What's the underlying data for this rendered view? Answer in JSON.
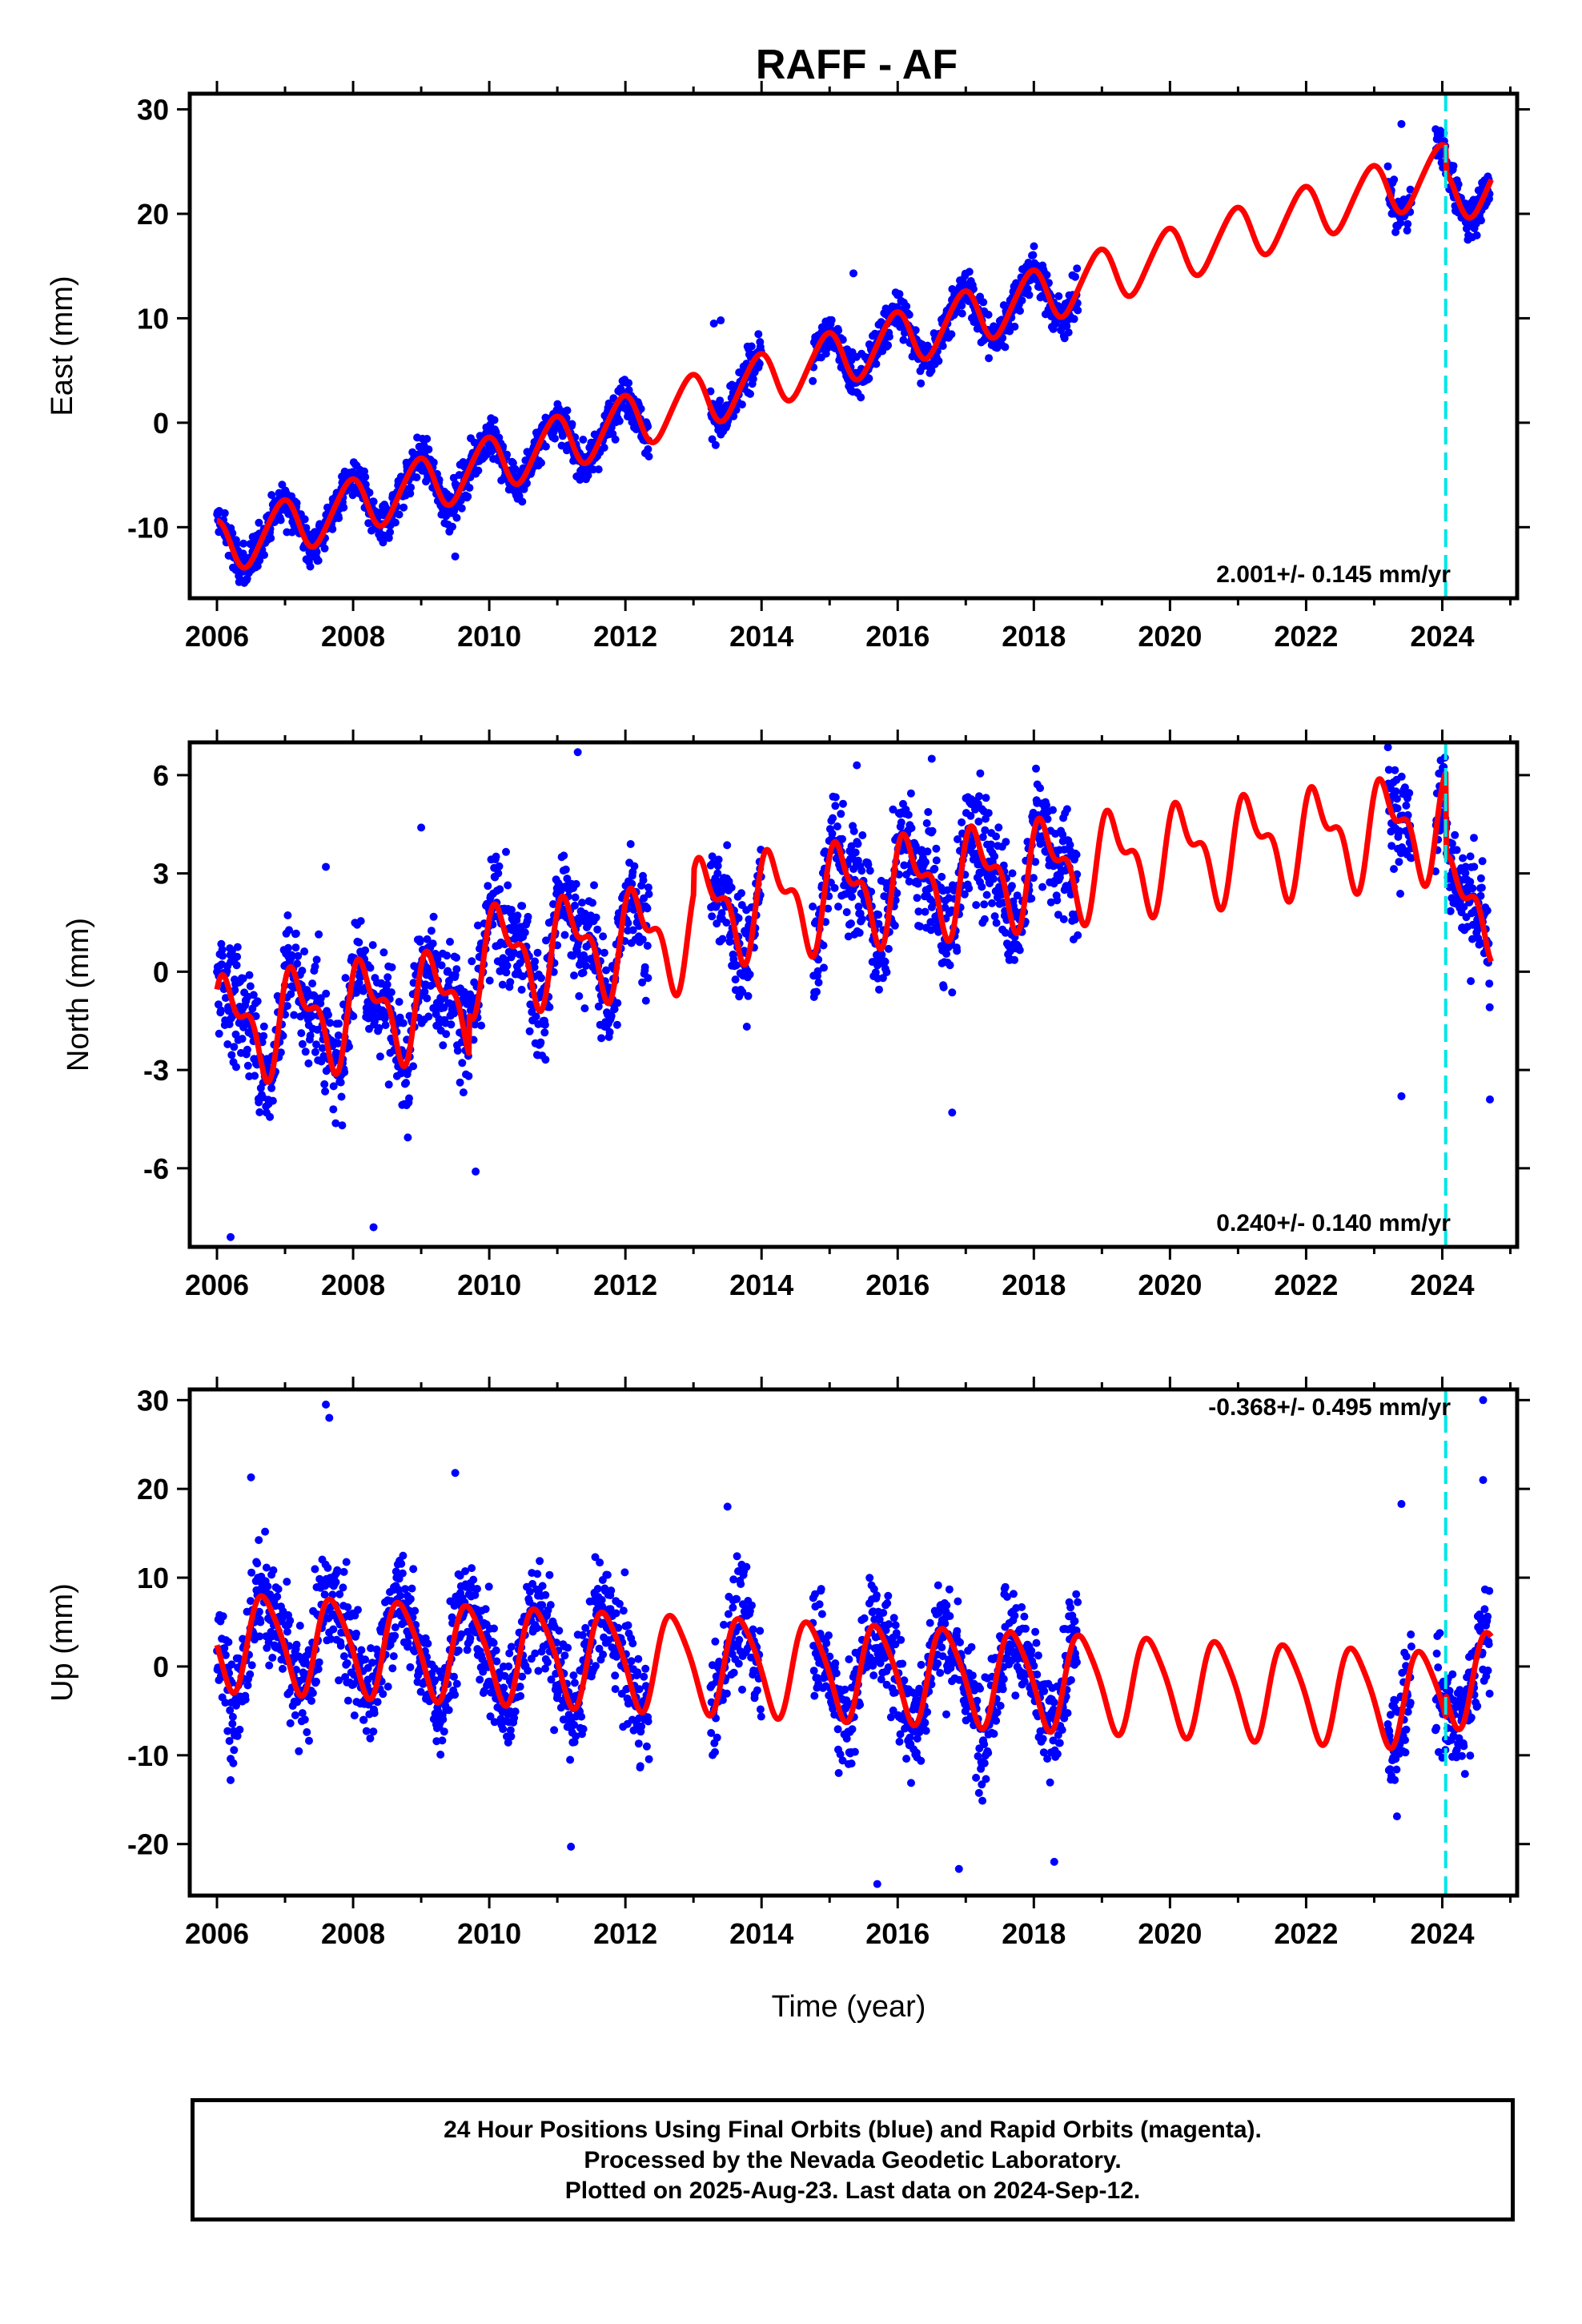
{
  "title": "RAFF - AF",
  "xlabel": "Time (year)",
  "colors": {
    "data": "#0000ff",
    "model": "#ff0000",
    "marker": "#00e5e5",
    "frame": "#000000"
  },
  "chart_data": [
    {
      "type": "scatter",
      "panel": "east",
      "ylabel": "East (mm)",
      "rate_text": "2.001+/- 0.145 mm/yr",
      "xlim": [
        2005.6,
        2025.1
      ],
      "ylim": [
        -16.8,
        31.5
      ],
      "yticks": [
        -10,
        0,
        10,
        20,
        30
      ],
      "xticks": [
        2006,
        2008,
        2010,
        2012,
        2014,
        2016,
        2018,
        2020,
        2022,
        2024
      ],
      "marker_line_x": 2024.05,
      "data_segments": [
        [
          2006.0,
          2012.35
        ],
        [
          2013.25,
          2014.0
        ],
        [
          2014.75,
          2018.65
        ],
        [
          2023.2,
          2023.55
        ],
        [
          2023.9,
          2024.7
        ]
      ],
      "model": {
        "offset": -12.0,
        "rate": 2.0,
        "rate_base": 2006.0,
        "annual": 2.6,
        "phase": 1.9,
        "semiannual": 0.3,
        "semi_phase": 0.5,
        "steps": [
          [
            2024.05,
            -2.5
          ]
        ]
      },
      "scatter": 1.4,
      "outliers": [
        [
          2013.3,
          9.5
        ],
        [
          2013.4,
          9.8
        ],
        [
          2015.35,
          14.3
        ],
        [
          2009.5,
          -12.8
        ],
        [
          2023.4,
          28.6
        ]
      ]
    },
    {
      "type": "scatter",
      "panel": "north",
      "ylabel": "North (mm)",
      "rate_text": "0.240+/- 0.140 mm/yr",
      "xlim": [
        2005.6,
        2025.1
      ],
      "ylim": [
        -8.4,
        7.0
      ],
      "yticks": [
        -6,
        -3,
        0,
        3,
        6
      ],
      "xticks": [
        2006,
        2008,
        2010,
        2012,
        2014,
        2016,
        2018,
        2020,
        2022,
        2024
      ],
      "marker_line_x": 2024.05,
      "data_segments": [
        [
          2006.0,
          2012.35
        ],
        [
          2013.25,
          2014.0
        ],
        [
          2014.75,
          2018.65
        ],
        [
          2023.2,
          2023.55
        ],
        [
          2023.9,
          2024.7
        ]
      ],
      "model": {
        "offset": -1.7,
        "rate": 0.24,
        "rate_base": 2006.0,
        "annual": 1.3,
        "phase": 0.4,
        "semiannual": 0.7,
        "semi_phase": 1.2,
        "steps": [
          [
            2009.7,
            1.2
          ],
          [
            2013.0,
            0.7
          ],
          [
            2024.05,
            -2.6
          ]
        ]
      },
      "scatter": 1.15,
      "outliers": [
        [
          2011.3,
          6.7
        ],
        [
          2016.5,
          6.5
        ],
        [
          2006.2,
          -8.1
        ],
        [
          2008.3,
          -7.8
        ],
        [
          2009.8,
          -6.1
        ],
        [
          2016.8,
          -4.3
        ],
        [
          2023.4,
          -3.8
        ],
        [
          2024.7,
          -3.9
        ],
        [
          2007.6,
          3.2
        ],
        [
          2009.0,
          4.4
        ],
        [
          2015.4,
          6.3
        ]
      ]
    },
    {
      "type": "scatter",
      "panel": "up",
      "ylabel": "Up (mm)",
      "rate_text": "-0.368+/- 0.495 mm/yr",
      "xlim": [
        2005.6,
        2025.1
      ],
      "ylim": [
        -25.8,
        31.2
      ],
      "yticks": [
        -20,
        -10,
        0,
        10,
        20,
        30
      ],
      "xticks": [
        2006,
        2008,
        2010,
        2012,
        2014,
        2016,
        2018,
        2020,
        2022,
        2024
      ],
      "marker_line_x": 2024.05,
      "data_segments": [
        [
          2006.0,
          2012.35
        ],
        [
          2013.25,
          2014.0
        ],
        [
          2014.75,
          2018.65
        ],
        [
          2023.2,
          2023.55
        ],
        [
          2023.9,
          2024.7
        ]
      ],
      "model": {
        "offset": 3.0,
        "rate": -0.368,
        "rate_base": 2006.0,
        "annual": 5.3,
        "phase": 3.4,
        "semiannual": 0.9,
        "semi_phase": 1.0,
        "steps": [
          [
            2024.05,
            2.5
          ]
        ]
      },
      "scatter": 4.2,
      "outliers": [
        [
          2007.6,
          29.5
        ],
        [
          2007.65,
          28.0
        ],
        [
          2009.5,
          21.8
        ],
        [
          2006.5,
          21.3
        ],
        [
          2015.7,
          -24.5
        ],
        [
          2024.6,
          30.0
        ],
        [
          2011.2,
          -20.3
        ],
        [
          2018.3,
          -22.0
        ],
        [
          2016.9,
          -22.8
        ],
        [
          2006.2,
          -12.8
        ],
        [
          2023.4,
          18.3
        ],
        [
          2024.6,
          21.0
        ],
        [
          2013.5,
          18.0
        ]
      ]
    }
  ],
  "footer": {
    "line1": "24 Hour Positions Using Final Orbits (blue) and Rapid Orbits (magenta).",
    "line2": "Processed by the Nevada Geodetic Laboratory.",
    "line3": "Plotted on 2025-Aug-23. Last data on 2024-Sep-12."
  }
}
